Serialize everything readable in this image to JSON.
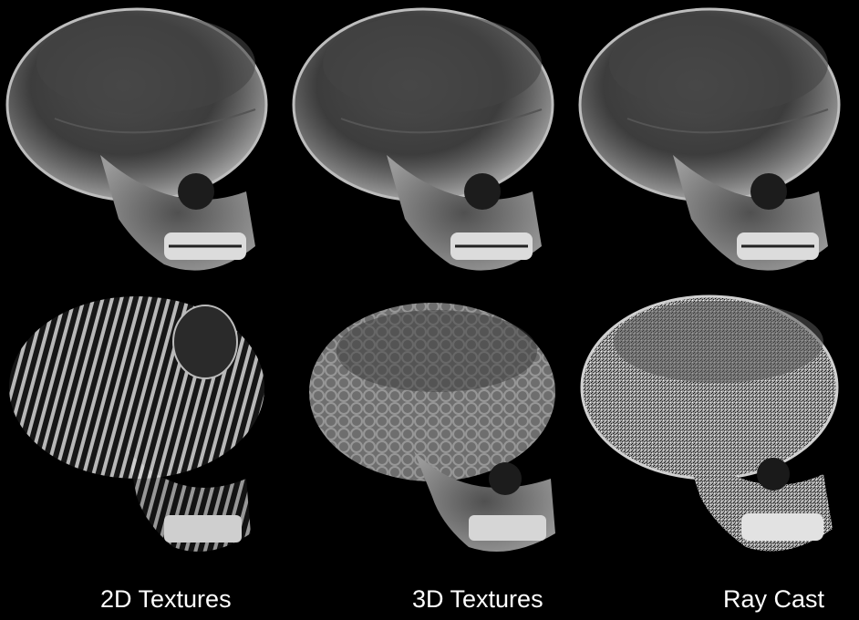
{
  "captions": {
    "left": "2D Textures",
    "middle": "3D Textures",
    "right": "Ray Cast"
  },
  "colors": {
    "background": "#000000",
    "caption_text": "#ffffff",
    "bone": "#9a9a9a"
  },
  "icons": {
    "skull_render": "skull-volume-render"
  }
}
